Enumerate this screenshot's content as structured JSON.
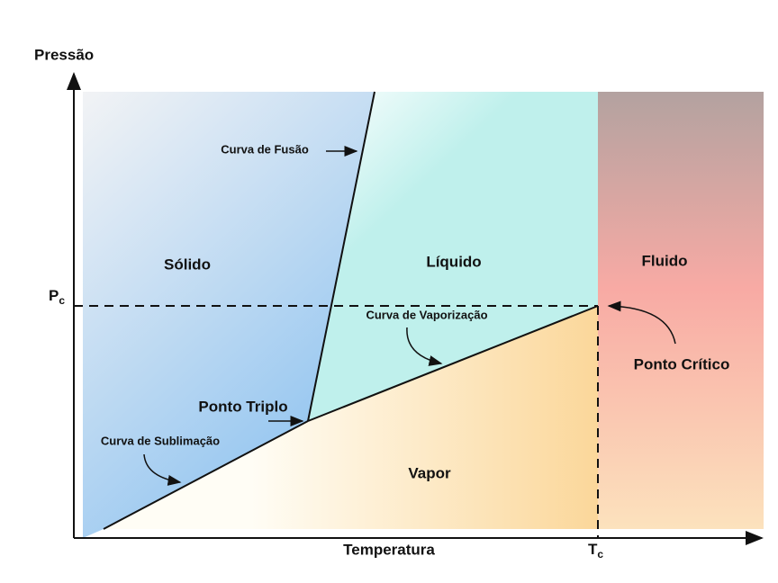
{
  "axes": {
    "y_label": "Pressão",
    "x_label": "Temperatura",
    "pc": {
      "main": "P",
      "sub": "c"
    },
    "tc": {
      "main": "T",
      "sub": "c"
    }
  },
  "regions": {
    "solid": "Sólido",
    "liquid": "Líquido",
    "fluid": "Fluido",
    "vapor": "Vapor"
  },
  "annotations": {
    "fusion": "Curva de Fusão",
    "vaporization": "Curva de Vaporização",
    "sublimation": "Curva de Sublimação",
    "triple": "Ponto Triplo",
    "critical": "Ponto Crítico"
  }
}
